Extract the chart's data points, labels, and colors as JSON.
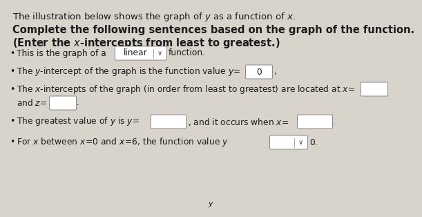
{
  "bg_color": "#d8d4cc",
  "text_color": "#1a1a1a",
  "box_color": "#ffffff",
  "box_edge": "#888888",
  "title": "The illustration below shows the graph of $y$ as a function of $x$.",
  "header1": "Complete the following sentences based on the graph of the function.",
  "header2": "(Enter the $x$-intercepts from least to greatest.)",
  "figsize": [
    6.11,
    3.14
  ],
  "dpi": 100,
  "title_fs": 9.5,
  "header_fs": 10.5,
  "body_fs": 8.8
}
